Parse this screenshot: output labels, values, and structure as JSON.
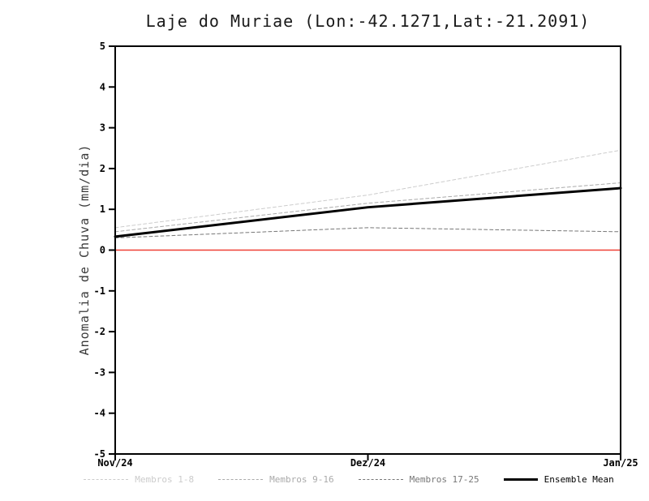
{
  "title": "Laje do Muriae (Lon:-42.1271,Lat:-21.2091)",
  "chart_data": {
    "type": "line",
    "title": "Laje do Muriae (Lon:-42.1271,Lat:-21.2091)",
    "xlabel": "",
    "ylabel": "Anomalia de Chuva (mm/dia)",
    "x": [
      "Nov/24",
      "Dez/24",
      "Jan/25"
    ],
    "ylim": [
      -5,
      5
    ],
    "yticks": [
      -5,
      -4,
      -3,
      -2,
      -1,
      0,
      1,
      2,
      3,
      4,
      5
    ],
    "grid": false,
    "legend_position": "bottom",
    "zero_line_color": "#ef4035",
    "zero_line_value": 0,
    "series": [
      {
        "name": "Membros 1-8",
        "values": [
          0.55,
          1.35,
          2.45
        ],
        "color": "#cccccc",
        "dash": "4,3",
        "width": 1
      },
      {
        "name": "Membros 9-16",
        "values": [
          0.45,
          1.15,
          1.65
        ],
        "color": "#aaaaaa",
        "dash": "4,3",
        "width": 1
      },
      {
        "name": "Membros 17-25",
        "values": [
          0.3,
          0.55,
          0.45
        ],
        "color": "#777777",
        "dash": "4,3",
        "width": 1
      },
      {
        "name": "Ensemble Mean",
        "values": [
          0.33,
          1.05,
          1.52
        ],
        "color": "#000000",
        "dash": null,
        "width": 3
      }
    ]
  }
}
